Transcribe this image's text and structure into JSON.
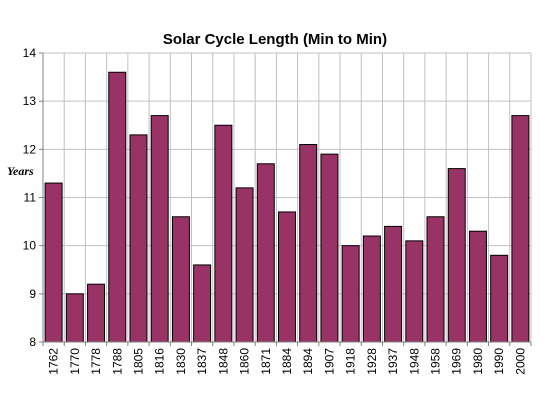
{
  "chart_data": {
    "type": "bar",
    "title": "Solar Cycle Length (Min to Min)",
    "xlabel": "",
    "ylabel": "Years",
    "ylim": [
      8,
      14
    ],
    "y_ticks": [
      8,
      9,
      10,
      11,
      12,
      13,
      14
    ],
    "grid": true,
    "legend": "none",
    "categories": [
      "1762",
      "1770",
      "1778",
      "1788",
      "1805",
      "1816",
      "1830",
      "1837",
      "1848",
      "1860",
      "1871",
      "1884",
      "1894",
      "1907",
      "1918",
      "1928",
      "1937",
      "1948",
      "1958",
      "1969",
      "1980",
      "1990",
      "2000"
    ],
    "values": [
      11.3,
      9.0,
      9.2,
      13.6,
      12.3,
      12.7,
      10.6,
      9.6,
      12.5,
      11.2,
      11.7,
      10.7,
      12.1,
      11.9,
      10.0,
      10.2,
      10.4,
      10.1,
      10.6,
      11.6,
      10.3,
      9.8,
      12.7
    ],
    "colors": {
      "bar_fill": "#993366",
      "bar_stroke": "#000000",
      "grid": "#c0c0c0",
      "axis": "#808080"
    }
  }
}
